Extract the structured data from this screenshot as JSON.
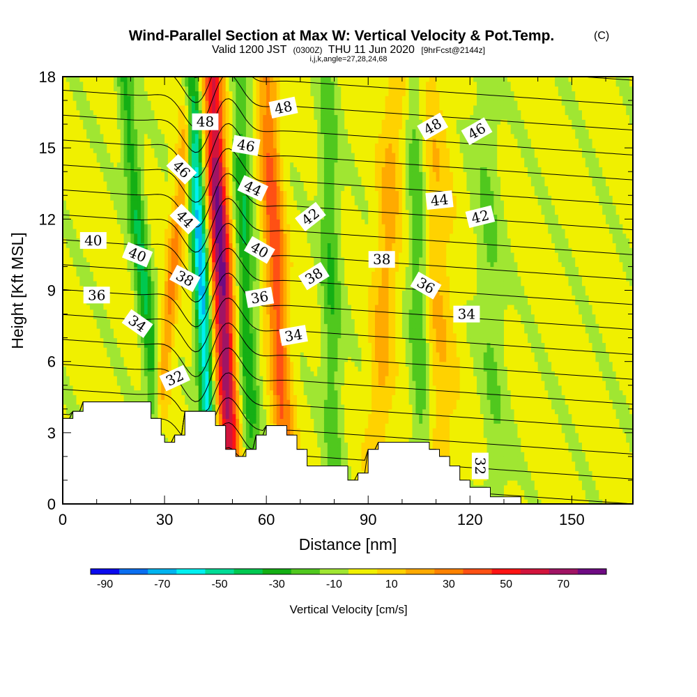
{
  "chart_data": {
    "type": "heatmap",
    "title": "Wind-Parallel Section at Max W: Vertical Velocity & Pot.Temp.",
    "title_mark": "(C)",
    "subtitle_parts": [
      "Valid 1200 JST",
      "(0300Z)",
      "THU 11 Jun 2020",
      "[9hrFcst@2144z]"
    ],
    "subtitle2": "i,j,k,angle=27,28,24,68",
    "xlabel": "Distance [nm]",
    "ylabel": "Height [Kft MSL]",
    "xlim": [
      0,
      168
    ],
    "ylim": [
      0,
      18
    ],
    "xticks": [
      0,
      30,
      60,
      90,
      120,
      150
    ],
    "yticks": [
      0,
      3,
      6,
      9,
      12,
      15,
      18
    ],
    "colorbar": {
      "label": "Vertical Velocity [cm/s]",
      "ticks": [
        -90,
        -70,
        -50,
        -30,
        -10,
        10,
        30,
        50,
        70
      ],
      "levels": [
        -90,
        -80,
        -70,
        -60,
        -50,
        -40,
        -30,
        -20,
        -10,
        0,
        10,
        20,
        30,
        40,
        50,
        60,
        70,
        80
      ],
      "colors": [
        "#0a0aee",
        "#0a6ef0",
        "#00b4f0",
        "#00f0f0",
        "#00dc96",
        "#00c850",
        "#14af14",
        "#50c81e",
        "#a0e632",
        "#f0f000",
        "#ffd200",
        "#ffaa00",
        "#ff8200",
        "#ff5014",
        "#ff1414",
        "#d2143c",
        "#a01464",
        "#6e0a82"
      ]
    },
    "terrain_kft": [
      [
        0,
        3.6
      ],
      [
        3,
        3.6
      ],
      [
        3,
        3.9
      ],
      [
        6,
        3.9
      ],
      [
        6,
        4.3
      ],
      [
        26,
        4.3
      ],
      [
        26,
        3.6
      ],
      [
        29,
        3.6
      ],
      [
        29,
        2.9
      ],
      [
        30,
        2.9
      ],
      [
        30,
        2.6
      ],
      [
        33,
        2.6
      ],
      [
        33,
        2.9
      ],
      [
        36,
        2.9
      ],
      [
        36,
        3.9
      ],
      [
        45,
        3.9
      ],
      [
        45,
        3.3
      ],
      [
        48,
        3.3
      ],
      [
        48,
        2.3
      ],
      [
        51,
        2.3
      ],
      [
        51,
        2.0
      ],
      [
        54,
        2.0
      ],
      [
        54,
        2.3
      ],
      [
        57,
        2.3
      ],
      [
        57,
        2.9
      ],
      [
        60,
        2.9
      ],
      [
        60,
        3.3
      ],
      [
        66,
        3.3
      ],
      [
        66,
        2.9
      ],
      [
        69,
        2.9
      ],
      [
        69,
        2.3
      ],
      [
        72,
        2.3
      ],
      [
        72,
        1.6
      ],
      [
        84,
        1.6
      ],
      [
        84,
        1.0
      ],
      [
        87,
        1.0
      ],
      [
        87,
        1.3
      ],
      [
        90,
        1.3
      ],
      [
        90,
        2.3
      ],
      [
        93,
        2.3
      ],
      [
        93,
        2.6
      ],
      [
        108,
        2.6
      ],
      [
        108,
        2.3
      ],
      [
        111,
        2.3
      ],
      [
        111,
        2.0
      ],
      [
        114,
        2.0
      ],
      [
        114,
        1.6
      ],
      [
        117,
        1.6
      ],
      [
        117,
        1.0
      ],
      [
        120,
        1.0
      ],
      [
        120,
        0.7
      ],
      [
        126,
        0.7
      ],
      [
        126,
        0.3
      ],
      [
        135,
        0.3
      ],
      [
        135,
        0.0
      ],
      [
        168,
        0.0
      ]
    ],
    "updraft_axes": [
      {
        "x_bottom": 26,
        "x_top": 38,
        "peak": 30,
        "width": 2.2
      },
      {
        "x_bottom": 50,
        "x_top": 44,
        "peak": 82,
        "width": 3.0
      },
      {
        "x_bottom": 66,
        "x_top": 60,
        "peak": 44,
        "width": 3.0
      },
      {
        "x_bottom": 92,
        "x_top": 98,
        "peak": 22,
        "width": 3.5
      },
      {
        "x_bottom": 112,
        "x_top": 108,
        "peak": 18,
        "width": 5.0
      }
    ],
    "downdraft_axes": [
      {
        "x_bottom": 30,
        "x_top": 18,
        "peak": -34,
        "width": 2.5
      },
      {
        "x_bottom": 44,
        "x_top": 38,
        "peak": -68,
        "width": 2.2
      },
      {
        "x_bottom": 56,
        "x_top": 52,
        "peak": -32,
        "width": 2.8
      },
      {
        "x_bottom": 80,
        "x_top": 78,
        "peak": -22,
        "width": 3.0
      },
      {
        "x_bottom": 106,
        "x_top": 104,
        "peak": -26,
        "width": 3.0
      },
      {
        "x_bottom": 128,
        "x_top": 124,
        "peak": -14,
        "width": 4.0
      }
    ],
    "isentrope_levels": [
      32,
      33,
      34,
      35,
      36,
      37,
      38,
      39,
      40,
      41,
      42,
      43,
      44,
      45,
      46,
      47,
      48,
      49,
      50
    ],
    "contour_labels": [
      {
        "text": "48",
        "x": 42,
        "y": 16.1,
        "angle": 0
      },
      {
        "text": "48",
        "x": 65,
        "y": 16.7,
        "angle": -12
      },
      {
        "text": "48",
        "x": 109,
        "y": 15.9,
        "angle": -30
      },
      {
        "text": "46",
        "x": 122,
        "y": 15.7,
        "angle": -30
      },
      {
        "text": "46",
        "x": 54,
        "y": 15.1,
        "angle": 10
      },
      {
        "text": "46",
        "x": 35,
        "y": 14.1,
        "angle": 45
      },
      {
        "text": "44",
        "x": 56,
        "y": 13.3,
        "angle": 25
      },
      {
        "text": "44",
        "x": 111,
        "y": 12.8,
        "angle": -6
      },
      {
        "text": "44",
        "x": 36,
        "y": 12.0,
        "angle": 45
      },
      {
        "text": "42",
        "x": 73,
        "y": 12.1,
        "angle": -38
      },
      {
        "text": "42",
        "x": 123,
        "y": 12.1,
        "angle": -14
      },
      {
        "text": "40",
        "x": 9,
        "y": 11.1,
        "angle": 0
      },
      {
        "text": "40",
        "x": 22,
        "y": 10.5,
        "angle": 22
      },
      {
        "text": "40",
        "x": 58,
        "y": 10.7,
        "angle": 30
      },
      {
        "text": "38",
        "x": 94,
        "y": 10.3,
        "angle": 0
      },
      {
        "text": "38",
        "x": 36,
        "y": 9.5,
        "angle": 28
      },
      {
        "text": "38",
        "x": 74,
        "y": 9.6,
        "angle": -32
      },
      {
        "text": "36",
        "x": 10,
        "y": 8.8,
        "angle": 0
      },
      {
        "text": "36",
        "x": 58,
        "y": 8.7,
        "angle": -10
      },
      {
        "text": "36",
        "x": 107,
        "y": 9.2,
        "angle": 30
      },
      {
        "text": "34",
        "x": 119,
        "y": 8.0,
        "angle": 0
      },
      {
        "text": "34",
        "x": 22,
        "y": 7.6,
        "angle": 35
      },
      {
        "text": "34",
        "x": 68,
        "y": 7.1,
        "angle": -10
      },
      {
        "text": "32",
        "x": 33,
        "y": 5.3,
        "angle": -25
      },
      {
        "text": "32",
        "x": 123,
        "y": 1.6,
        "angle": 90
      }
    ]
  }
}
